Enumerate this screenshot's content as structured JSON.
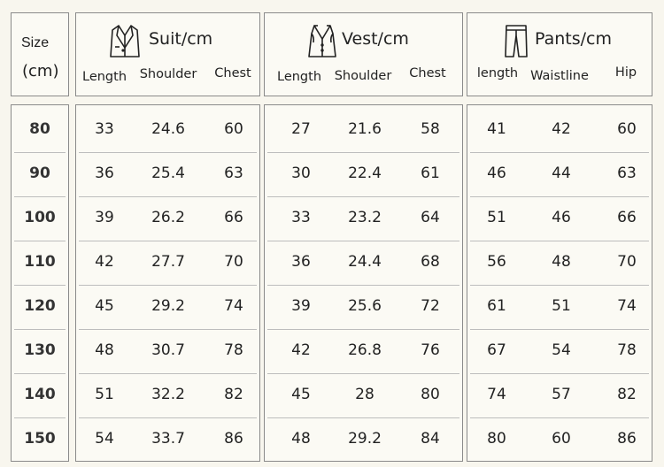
{
  "size_header": {
    "label": "Size",
    "unit": "(cm)"
  },
  "groups": [
    {
      "title": "Suit/cm",
      "icon": "suit-jacket-icon",
      "columns": [
        "Length",
        "Shoulder",
        "Chest"
      ]
    },
    {
      "title": "Vest/cm",
      "icon": "vest-icon",
      "columns": [
        "Length",
        "Shoulder",
        "Chest"
      ]
    },
    {
      "title": "Pants/cm",
      "icon": "pants-icon",
      "columns": [
        "length",
        "Waistline",
        "Hip"
      ]
    }
  ],
  "rows": [
    {
      "size": "80",
      "values": [
        "33",
        "24.6",
        "60",
        "27",
        "21.6",
        "58",
        "41",
        "42",
        "60"
      ]
    },
    {
      "size": "90",
      "values": [
        "36",
        "25.4",
        "63",
        "30",
        "22.4",
        "61",
        "46",
        "44",
        "63"
      ]
    },
    {
      "size": "100",
      "values": [
        "39",
        "26.2",
        "66",
        "33",
        "23.2",
        "64",
        "51",
        "46",
        "66"
      ]
    },
    {
      "size": "110",
      "values": [
        "42",
        "27.7",
        "70",
        "36",
        "24.4",
        "68",
        "56",
        "48",
        "70"
      ]
    },
    {
      "size": "120",
      "values": [
        "45",
        "29.2",
        "74",
        "39",
        "25.6",
        "72",
        "61",
        "51",
        "74"
      ]
    },
    {
      "size": "130",
      "values": [
        "48",
        "30.7",
        "78",
        "42",
        "26.8",
        "76",
        "67",
        "54",
        "78"
      ]
    },
    {
      "size": "140",
      "values": [
        "51",
        "32.2",
        "82",
        "45",
        "28",
        "80",
        "74",
        "57",
        "82"
      ]
    },
    {
      "size": "150",
      "values": [
        "54",
        "33.7",
        "86",
        "48",
        "29.2",
        "84",
        "80",
        "60",
        "86"
      ]
    }
  ]
}
